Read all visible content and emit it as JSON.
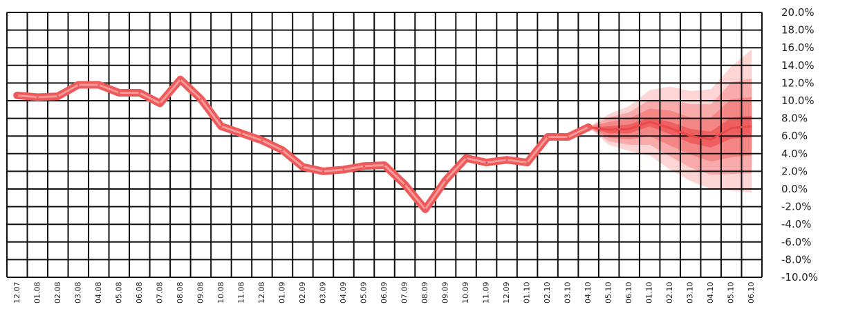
{
  "chart_data": {
    "type": "line",
    "title": "",
    "xlabel": "",
    "ylabel": "",
    "ylim": [
      -10,
      20
    ],
    "grid": true,
    "y_ticks": [
      "20.0%",
      "18.0%",
      "16.0%",
      "14.0%",
      "12.0%",
      "10.0%",
      "8.0%",
      "6.0%",
      "4.0%",
      "2.0%",
      "0.0%",
      "-2.0%",
      "-4.0%",
      "-6.0%",
      "-8.0%",
      "-10.0%"
    ],
    "categories": [
      "12.07",
      "01.08",
      "02.08",
      "03.08",
      "04.08",
      "05.08",
      "06.08",
      "07.08",
      "08.08",
      "09.08",
      "10.08",
      "11.08",
      "12.08",
      "01.09",
      "02.09",
      "03.09",
      "04.09",
      "05.09",
      "06.09",
      "07.09",
      "08.09",
      "09.09",
      "10.09",
      "11.09",
      "12.09",
      "01.10",
      "02.10",
      "03.10",
      "04.10",
      "05.10",
      "06.10",
      "01.10",
      "02.10",
      "03.10",
      "04.10",
      "05.10",
      "06.10"
    ],
    "series": [
      {
        "values": [
          10.6,
          10.4,
          10.5,
          11.8,
          11.8,
          10.9,
          10.9,
          9.7,
          12.4,
          10.2,
          7.1,
          6.3,
          5.5,
          4.4,
          2.5,
          2.0,
          2.2,
          2.6,
          2.7,
          0.5,
          -2.3,
          1.0,
          3.5,
          3.0,
          3.3,
          3.0,
          5.9,
          5.9,
          7.0,
          null,
          null,
          null,
          null,
          null,
          null,
          null,
          null
        ],
        "color": "#ee5a5a"
      }
    ],
    "forecast": {
      "start_index": 28,
      "central": [
        7.0,
        6.7,
        6.8,
        7.6,
        6.9,
        6.0,
        5.6,
        6.9,
        7.1
      ],
      "bands": [
        {
          "lower": [
            7.0,
            6.3,
            6.3,
            7.1,
            6.2,
            5.2,
            4.7,
            5.7,
            5.9
          ],
          "upper": [
            7.0,
            7.1,
            7.3,
            8.1,
            7.6,
            6.8,
            6.5,
            8.1,
            8.3
          ],
          "color": "#ef5f5f"
        },
        {
          "lower": [
            7.0,
            5.8,
            5.6,
            6.0,
            4.9,
            3.9,
            3.1,
            3.6,
            3.8
          ],
          "upper": [
            7.0,
            7.6,
            8.0,
            9.1,
            8.9,
            8.1,
            8.1,
            10.2,
            10.4
          ],
          "color": "#f48686"
        },
        {
          "lower": [
            7.0,
            5.4,
            5.0,
            5.0,
            3.7,
            2.4,
            1.6,
            1.7,
            1.8
          ],
          "upper": [
            7.0,
            8.1,
            8.7,
            10.1,
            10.1,
            9.6,
            9.6,
            12.1,
            12.5
          ],
          "color": "#f9abab"
        },
        {
          "lower": [
            7.0,
            5.0,
            4.3,
            3.8,
            2.2,
            0.9,
            0.0,
            -0.2,
            -0.4
          ],
          "upper": [
            7.0,
            8.5,
            9.4,
            11.2,
            11.6,
            11.1,
            11.3,
            13.9,
            15.8
          ],
          "color": "#fdd5d5"
        }
      ]
    }
  }
}
